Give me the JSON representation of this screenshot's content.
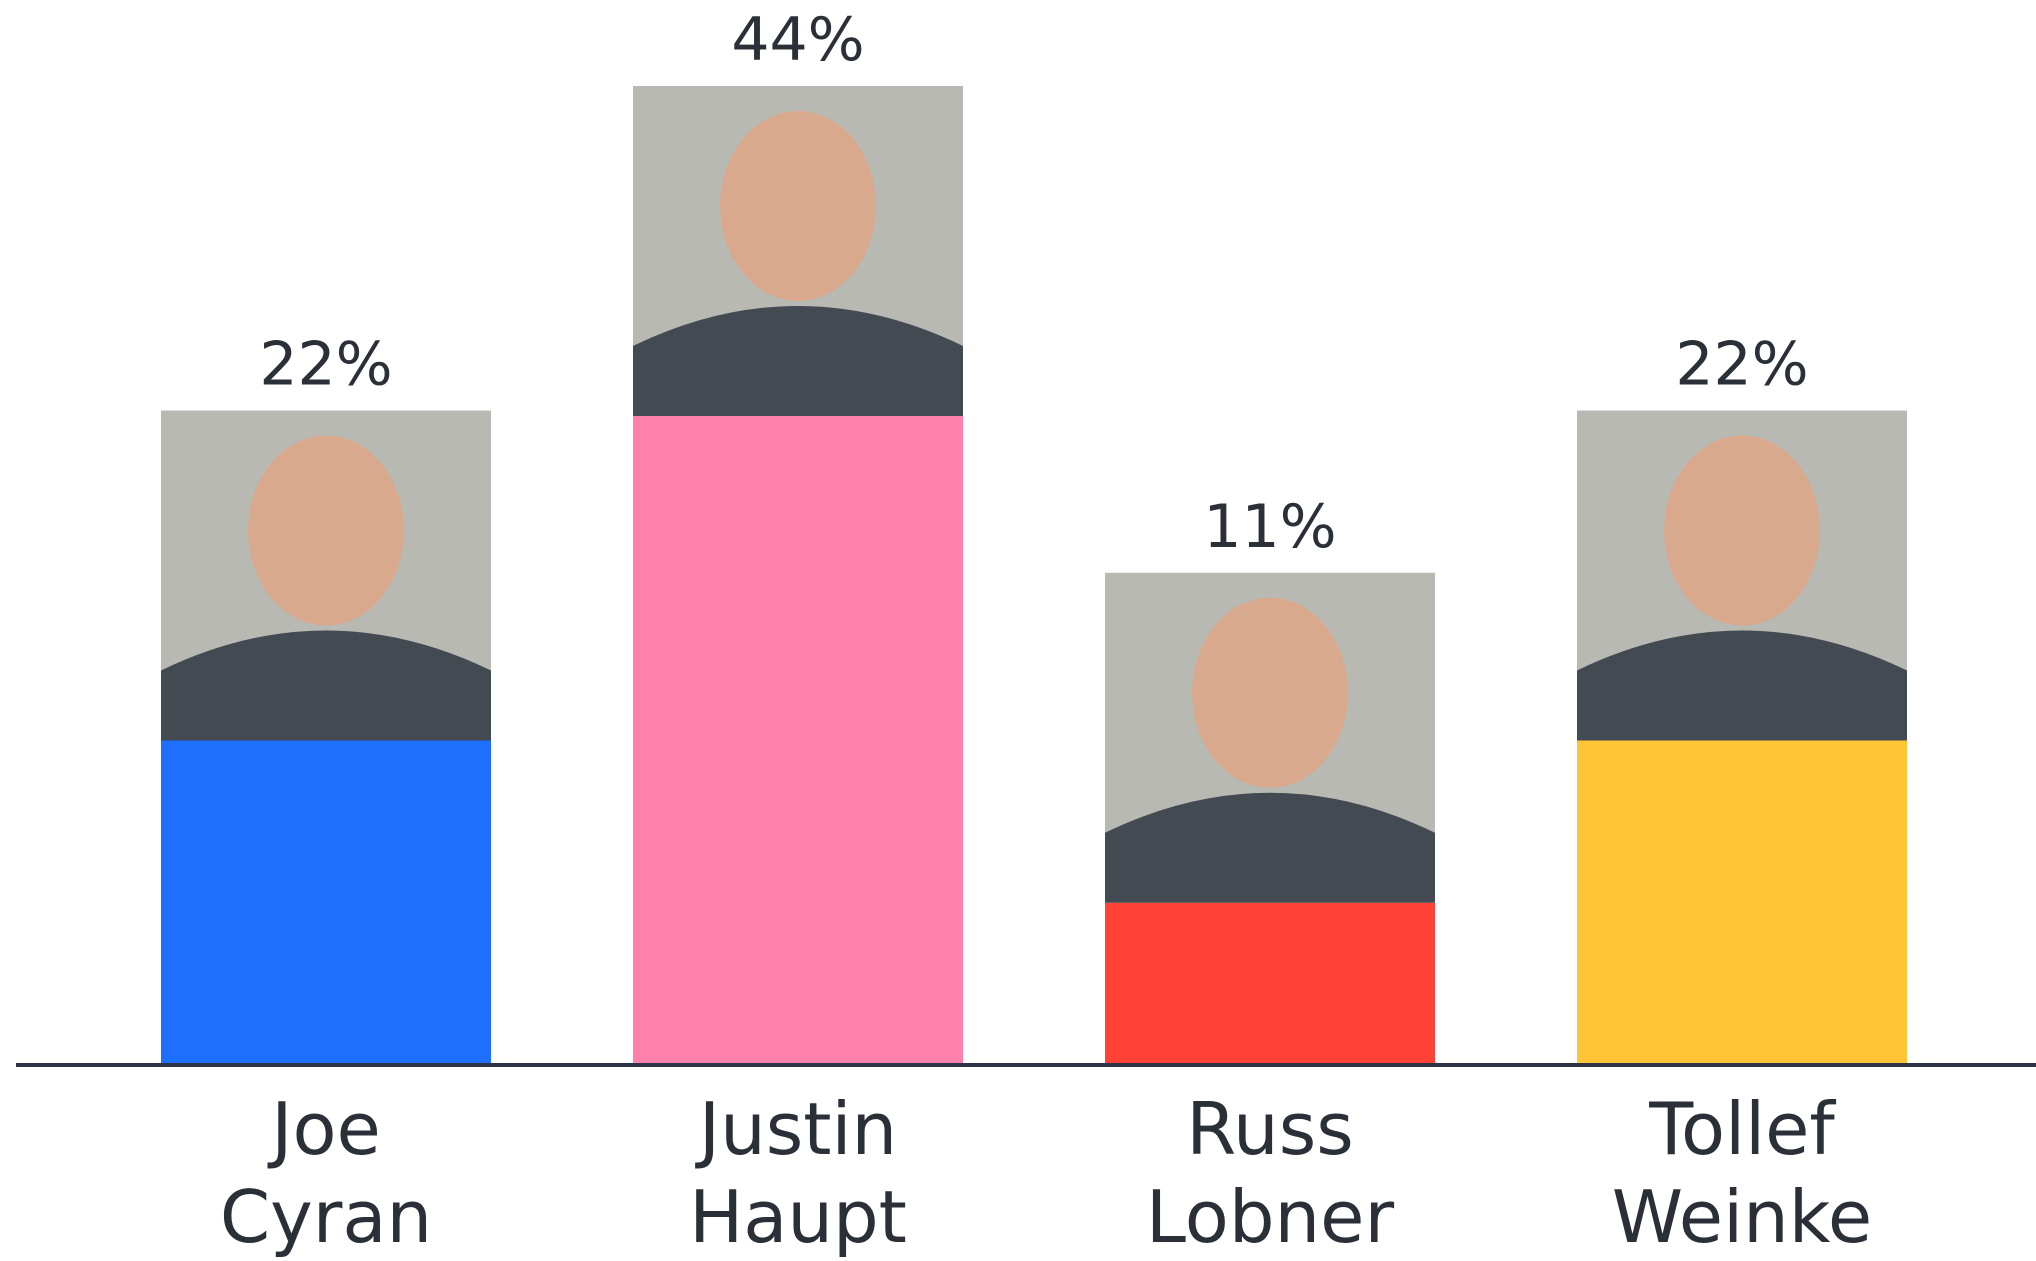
{
  "chart_data": {
    "type": "bar",
    "categories": [
      "Joe Cyran",
      "Justin Haupt",
      "Russ Lobner",
      "Tollef Weinke"
    ],
    "values": [
      22,
      44,
      11,
      22
    ],
    "value_labels": [
      "22%",
      "44%",
      "11%",
      "22%"
    ],
    "colors": [
      "#1f6fff",
      "#ff80ab",
      "#ff4136",
      "#ffc537"
    ]
  }
}
